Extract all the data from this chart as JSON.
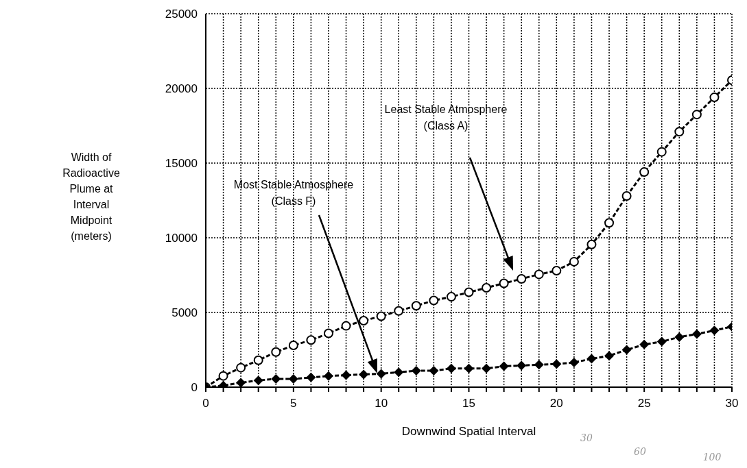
{
  "chart_data": {
    "type": "line",
    "xlabel": "Downwind Spatial Interval",
    "ylabel": "Width of\nRadioactive\nPlume at\nInterval\nMidpoint\n(meters)",
    "x": [
      0,
      1,
      2,
      3,
      4,
      5,
      6,
      7,
      8,
      9,
      10,
      11,
      12,
      13,
      14,
      15,
      16,
      17,
      18,
      19,
      20,
      21,
      22,
      23,
      24,
      25,
      26,
      27,
      28,
      29,
      30
    ],
    "series": [
      {
        "color": "#000000",
        "marker": "circle",
        "values": [
          0,
          750,
          1300,
          1800,
          2350,
          2800,
          3150,
          3600,
          4100,
          4450,
          4750,
          5100,
          5450,
          5800,
          6050,
          6350,
          6650,
          6950,
          7250,
          7550,
          7800,
          8400,
          9550,
          11000,
          12800,
          14400,
          15750,
          17100,
          18250,
          19400,
          20550
        ]
      },
      {
        "color": "#000000",
        "marker": "diamond",
        "values": [
          0,
          100,
          300,
          450,
          550,
          550,
          650,
          750,
          800,
          850,
          900,
          1000,
          1100,
          1100,
          1250,
          1250,
          1250,
          1400,
          1450,
          1500,
          1550,
          1650,
          1900,
          2100,
          2500,
          2850,
          3050,
          3350,
          3550,
          3800,
          4050
        ]
      }
    ],
    "line_style": "dashed",
    "xlim": [
      0,
      30
    ],
    "xticks": [
      0,
      {
        "value": 1,
        "label": null
      },
      {
        "value": 2,
        "label": null
      },
      {
        "value": 3,
        "label": null
      },
      {
        "value": 4,
        "label": null
      },
      5,
      {
        "value": 6,
        "label": null
      },
      {
        "value": 7,
        "label": null
      },
      {
        "value": 8,
        "label": null
      },
      {
        "value": 9,
        "label": null
      },
      10,
      {
        "value": 11,
        "label": null
      },
      {
        "value": 12,
        "label": null
      },
      {
        "value": 13,
        "label": null
      },
      {
        "value": 14,
        "label": null
      },
      15,
      {
        "value": 16,
        "label": null
      },
      {
        "value": 17,
        "label": null
      },
      {
        "value": 18,
        "label": null
      },
      {
        "value": 19,
        "label": null
      },
      20,
      {
        "value": 21,
        "label": null
      },
      {
        "value": 22,
        "label": null
      },
      {
        "value": 23,
        "label": null
      },
      {
        "value": 24,
        "label": null
      },
      25,
      {
        "value": 26,
        "label": null
      },
      {
        "value": 27,
        "label": null
      },
      {
        "value": 28,
        "label": null
      },
      {
        "value": 29,
        "label": null
      },
      30
    ],
    "ylim": [
      0,
      25000
    ],
    "yticks": [
      0,
      5000,
      10000,
      15000,
      20000,
      25000
    ],
    "grid": true,
    "annotations": [
      "Least Stable Atmosphere\n(Class A)",
      "Most Stable Atmosphere\n(Class F)",
      "30",
      "60",
      "100"
    ]
  }
}
